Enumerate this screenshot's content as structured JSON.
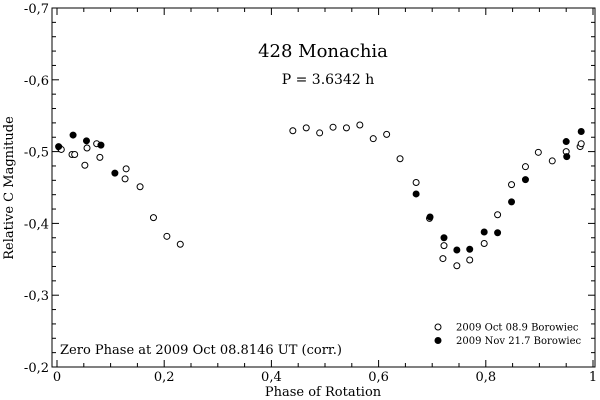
{
  "chart_data": {
    "type": "scatter",
    "title": "428 Monachia",
    "subtitle": "P = 3.6342 h",
    "annotation": "Zero Phase at 2009 Oct 08.8146 UT (corr.)",
    "xlabel": "Phase of Rotation",
    "ylabel": "Relative C Magnitude",
    "xlim": [
      0,
      1
    ],
    "ylim": [
      -0.2,
      -0.7
    ],
    "x_ticks": [
      0,
      0.2,
      0.4,
      0.6,
      0.8,
      1
    ],
    "x_tick_labels": [
      "0",
      "0,2",
      "0,4",
      "0,6",
      "0,8",
      "1"
    ],
    "y_ticks": [
      -0.7,
      -0.6,
      -0.5,
      -0.4,
      -0.3,
      -0.2
    ],
    "y_tick_labels": [
      "-0,7",
      "-0,6",
      "-0,5",
      "-0,4",
      "-0,3",
      "-0,2"
    ],
    "legend_position": "bottom-right",
    "series": [
      {
        "name": "2009 Oct 08.9 Borowiec",
        "marker": "open-circle",
        "points": [
          [
            0.004,
            -0.506
          ],
          [
            0.008,
            -0.503
          ],
          [
            0.028,
            -0.496
          ],
          [
            0.033,
            -0.496
          ],
          [
            0.052,
            -0.481
          ],
          [
            0.056,
            -0.505
          ],
          [
            0.074,
            -0.511
          ],
          [
            0.08,
            -0.492
          ],
          [
            0.127,
            -0.462
          ],
          [
            0.129,
            -0.476
          ],
          [
            0.155,
            -0.451
          ],
          [
            0.18,
            -0.408
          ],
          [
            0.205,
            -0.382
          ],
          [
            0.23,
            -0.371
          ],
          [
            0.44,
            -0.529
          ],
          [
            0.465,
            -0.533
          ],
          [
            0.49,
            -0.526
          ],
          [
            0.515,
            -0.534
          ],
          [
            0.54,
            -0.533
          ],
          [
            0.565,
            -0.537
          ],
          [
            0.59,
            -0.518
          ],
          [
            0.615,
            -0.524
          ],
          [
            0.64,
            -0.49
          ],
          [
            0.67,
            -0.457
          ],
          [
            0.695,
            -0.407
          ],
          [
            0.72,
            -0.351
          ],
          [
            0.722,
            -0.369
          ],
          [
            0.746,
            -0.341
          ],
          [
            0.77,
            -0.349
          ],
          [
            0.797,
            -0.372
          ],
          [
            0.822,
            -0.412
          ],
          [
            0.848,
            -0.454
          ],
          [
            0.874,
            -0.479
          ],
          [
            0.898,
            -0.499
          ],
          [
            0.924,
            -0.487
          ],
          [
            0.95,
            -0.5
          ],
          [
            0.976,
            -0.507
          ],
          [
            0.978,
            -0.511
          ]
        ]
      },
      {
        "name": "2009 Nov 21.7 Borowiec",
        "marker": "filled-circle",
        "points": [
          [
            0.003,
            -0.507
          ],
          [
            0.03,
            -0.523
          ],
          [
            0.055,
            -0.515
          ],
          [
            0.082,
            -0.509
          ],
          [
            0.108,
            -0.47
          ],
          [
            0.67,
            -0.441
          ],
          [
            0.696,
            -0.409
          ],
          [
            0.722,
            -0.38
          ],
          [
            0.746,
            -0.363
          ],
          [
            0.77,
            -0.364
          ],
          [
            0.797,
            -0.388
          ],
          [
            0.822,
            -0.387
          ],
          [
            0.848,
            -0.43
          ],
          [
            0.874,
            -0.461
          ],
          [
            0.95,
            -0.514
          ],
          [
            0.951,
            -0.493
          ],
          [
            0.978,
            -0.528
          ]
        ]
      }
    ]
  }
}
